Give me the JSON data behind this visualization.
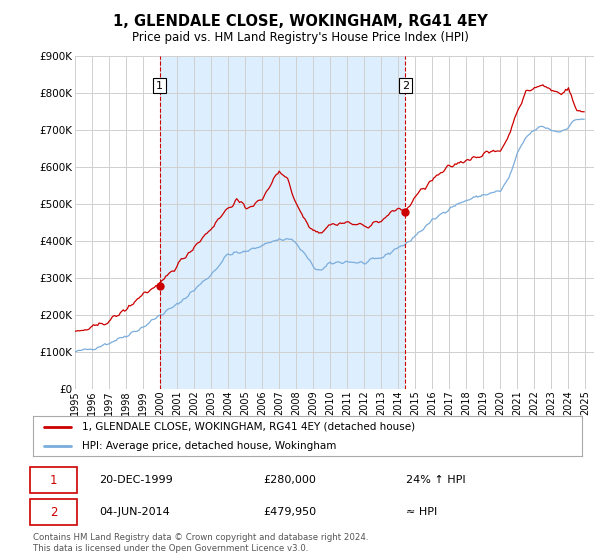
{
  "title": "1, GLENDALE CLOSE, WOKINGHAM, RG41 4EY",
  "subtitle": "Price paid vs. HM Land Registry's House Price Index (HPI)",
  "legend_line1": "1, GLENDALE CLOSE, WOKINGHAM, RG41 4EY (detached house)",
  "legend_line2": "HPI: Average price, detached house, Wokingham",
  "transaction1_date": "20-DEC-1999",
  "transaction1_price": "£280,000",
  "transaction1_hpi": "24% ↑ HPI",
  "transaction2_date": "04-JUN-2014",
  "transaction2_price": "£479,950",
  "transaction2_hpi": "≈ HPI",
  "footer": "Contains HM Land Registry data © Crown copyright and database right 2024.\nThis data is licensed under the Open Government Licence v3.0.",
  "hpi_color": "#7aaddc",
  "price_color": "#cc0000",
  "background_color": "#ffffff",
  "band_color": "#ddeeff",
  "grid_color": "#d0d0d0",
  "ylim": [
    0,
    900000
  ],
  "yticks": [
    0,
    100000,
    200000,
    300000,
    400000,
    500000,
    600000,
    700000,
    800000,
    900000
  ],
  "xlim_start": 1995.0,
  "xlim_end": 2025.5,
  "transaction1_x": 1999.97,
  "transaction1_y": 280000,
  "transaction2_x": 2014.42,
  "transaction2_y": 479950,
  "xtick_years": [
    1995,
    1996,
    1997,
    1998,
    1999,
    2000,
    2001,
    2002,
    2003,
    2004,
    2005,
    2006,
    2007,
    2008,
    2009,
    2010,
    2011,
    2012,
    2013,
    2014,
    2015,
    2016,
    2017,
    2018,
    2019,
    2020,
    2021,
    2022,
    2023,
    2024,
    2025
  ]
}
